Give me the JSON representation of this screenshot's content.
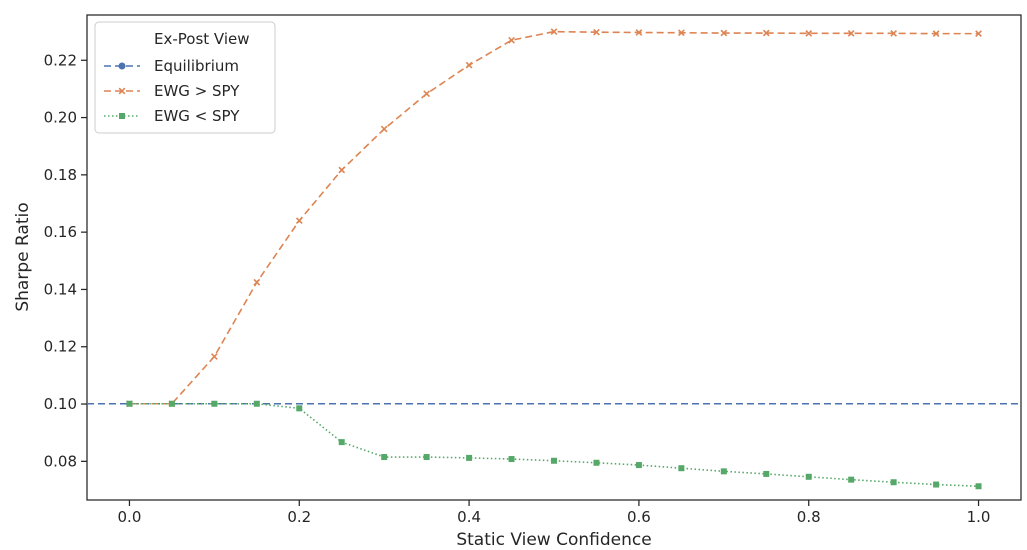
{
  "chart_data": {
    "type": "line",
    "title": "",
    "xlabel": "Static View Confidence",
    "ylabel": "Sharpe Ratio",
    "xlim": [
      -0.05,
      1.05
    ],
    "ylim": [
      0.0665,
      0.2358
    ],
    "x_ticks": [
      0.0,
      0.2,
      0.4,
      0.6,
      0.8,
      1.0
    ],
    "x_tick_labels": [
      "0.0",
      "0.2",
      "0.4",
      "0.6",
      "0.8",
      "1.0"
    ],
    "y_ticks": [
      0.08,
      0.1,
      0.12,
      0.14,
      0.16,
      0.18,
      0.2,
      0.22
    ],
    "y_tick_labels": [
      "0.08",
      "0.10",
      "0.12",
      "0.14",
      "0.16",
      "0.18",
      "0.20",
      "0.22"
    ],
    "grid": false,
    "legend": {
      "title": "Ex-Post View",
      "placement": "top-left"
    },
    "x": [
      0.0,
      0.05,
      0.1,
      0.15,
      0.2,
      0.25,
      0.3,
      0.35,
      0.4,
      0.45,
      0.5,
      0.55,
      0.6,
      0.65,
      0.7,
      0.75,
      0.8,
      0.85,
      0.9,
      0.95,
      1.0
    ],
    "series": [
      {
        "name": "Equilibrium",
        "color": "#4c72b0",
        "linestyle": "dashed",
        "marker": "circle",
        "values": [
          0.1001,
          0.1001,
          0.1001,
          0.1001,
          0.1001,
          0.1001,
          0.1001,
          0.1001,
          0.1001,
          0.1001,
          0.1001,
          0.1001,
          0.1001,
          0.1001,
          0.1001,
          0.1001,
          0.1001,
          0.1001,
          0.1001,
          0.1001,
          0.1001
        ]
      },
      {
        "name": "EWG > SPY",
        "color": "#dd8452",
        "linestyle": "dashed",
        "marker": "x",
        "values": [
          0.1001,
          0.1001,
          0.1166,
          0.1425,
          0.164,
          0.1817,
          0.196,
          0.2083,
          0.2183,
          0.227,
          0.23,
          0.2298,
          0.2297,
          0.2296,
          0.2295,
          0.2295,
          0.2294,
          0.2294,
          0.2294,
          0.2293,
          0.2293
        ]
      },
      {
        "name": "EWG < SPY",
        "color": "#55a868",
        "linestyle": "dotted",
        "marker": "square",
        "values": [
          0.1001,
          0.1001,
          0.1001,
          0.1001,
          0.0985,
          0.0867,
          0.0815,
          0.0815,
          0.0812,
          0.0808,
          0.0802,
          0.0795,
          0.0787,
          0.0776,
          0.0765,
          0.0756,
          0.0746,
          0.0736,
          0.0727,
          0.0719,
          0.0713
        ]
      }
    ]
  }
}
